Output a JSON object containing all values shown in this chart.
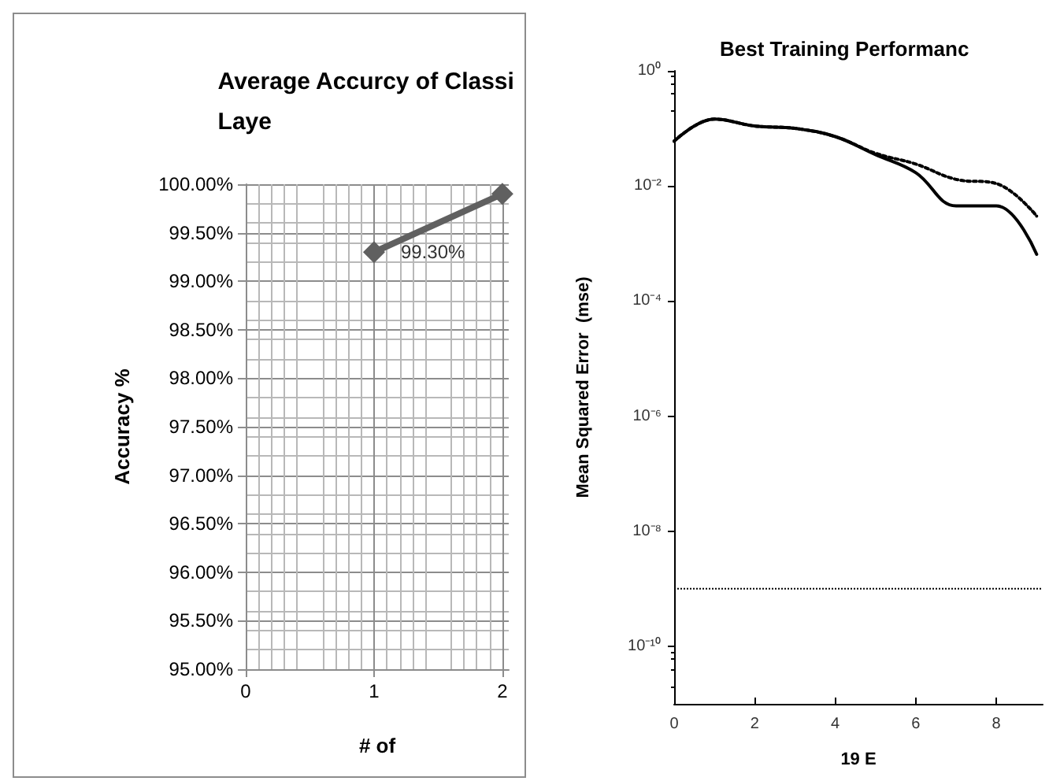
{
  "chart_data": [
    {
      "type": "line",
      "title": "Average Accurcy of Classi\nLaye",
      "xlabel": "# of",
      "ylabel": "Accuracy %",
      "xlim": [
        0,
        2.05
      ],
      "xticks": [
        0,
        1,
        2
      ],
      "ylim": [
        95,
        100
      ],
      "yticks": [
        {
          "value": 95,
          "label": "95.00%"
        },
        {
          "value": 95.5,
          "label": "95.50%"
        },
        {
          "value": 96,
          "label": "96.00%"
        },
        {
          "value": 96.5,
          "label": "96.50%"
        },
        {
          "value": 97,
          "label": "97.00%"
        },
        {
          "value": 97.5,
          "label": "97.50%"
        },
        {
          "value": 98,
          "label": "98.00%"
        },
        {
          "value": 98.5,
          "label": "98.50%"
        },
        {
          "value": 99,
          "label": "99.00%"
        },
        {
          "value": 99.5,
          "label": "99.50%"
        },
        {
          "value": 100,
          "label": "100.00%"
        }
      ],
      "grid": true,
      "marker": "diamond",
      "line_style": "solid",
      "series": [
        {
          "color": "#606060",
          "x": [
            1,
            2
          ],
          "values": [
            99.3,
            99.9
          ],
          "value_labels": [
            "99.30%",
            null
          ]
        }
      ]
    },
    {
      "type": "line",
      "title": "Best Training Performanc",
      "xlabel": "19 E",
      "ylabel": "Mean Squared Error  (mse)",
      "log": "y",
      "xlim": [
        0,
        9.15
      ],
      "xticks": [
        0,
        2,
        4,
        6,
        8
      ],
      "ylim": [
        1e-11,
        1
      ],
      "yticks": [
        {
          "value": 1,
          "label": "10⁰"
        },
        {
          "value": 0.01,
          "label": "10⁻²"
        },
        {
          "value": 0.0001,
          "label": "10⁻⁴"
        },
        {
          "value": 1e-06,
          "label": "10⁻⁶"
        },
        {
          "value": 1e-08,
          "label": "10⁻⁸"
        },
        {
          "value": 1e-10,
          "label": "10⁻¹⁰"
        }
      ],
      "marker": "none",
      "ref_lines": [
        {
          "axis": "y",
          "value": 1e-09,
          "label": null,
          "color": "#000000",
          "line_style": "dotted"
        }
      ],
      "series": [
        {
          "color": "#000000",
          "line_style": "dotted",
          "x": [
            0,
            1,
            2,
            3,
            4,
            5,
            6,
            7,
            8,
            9
          ],
          "values": [
            0.06,
            0.145,
            0.11,
            0.1,
            0.072,
            0.037,
            0.024,
            0.013,
            0.011,
            0.003
          ]
        },
        {
          "color": "#000000",
          "line_style": "solid",
          "x": [
            0,
            1,
            2,
            3,
            4,
            5,
            6,
            7,
            8,
            9
          ],
          "values": [
            0.06,
            0.145,
            0.11,
            0.1,
            0.072,
            0.035,
            0.017,
            0.0045,
            0.0045,
            0.00065
          ]
        }
      ]
    }
  ]
}
